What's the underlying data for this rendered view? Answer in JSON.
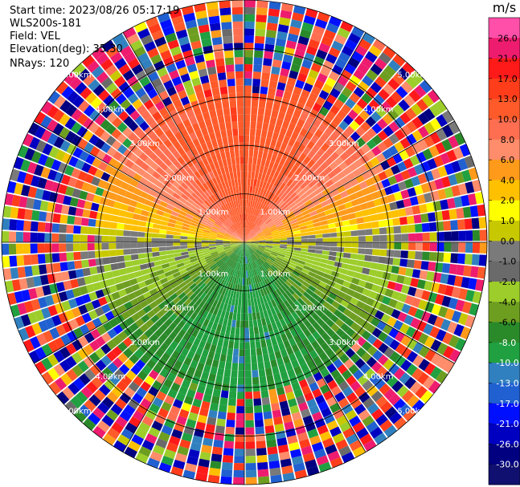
{
  "header": {
    "start_time": "Start time: 2023/08/26 05:17:19",
    "instrument": "WLS200s-181",
    "field": "Field: VEL",
    "elevation": "Elevation(deg): 35.30",
    "nrays": "NRays: 120"
  },
  "colorbar": {
    "unit": "m/s",
    "ticks": [
      "26.0",
      "21.0",
      "17.0",
      "13.0",
      "10.0",
      "8.0",
      "6.0",
      "4.0",
      "2.0",
      "1.0",
      "0.0",
      "-1.0",
      "-2.0",
      "-4.0",
      "-6.0",
      "-8.0",
      "-10.0",
      "-13.0",
      "-17.0",
      "-21.0",
      "-26.0",
      "-30.0"
    ],
    "colors": [
      "#ff4fa8",
      "#ee1c6e",
      "#ff1a1a",
      "#ff3d1a",
      "#ff5a2a",
      "#ff6e50",
      "#ff8c6a",
      "#ff9a1a",
      "#ffc000",
      "#ffff00",
      "#c8c800",
      "#7a7a7a",
      "#6a6a6a",
      "#9ccd2a",
      "#6e9e20",
      "#2a8a2a",
      "#20a040",
      "#3080c0",
      "#2060d0",
      "#0010ff",
      "#0000c0",
      "#000080",
      "#101070"
    ]
  },
  "chart_data": {
    "type": "heatmap",
    "subtype": "polar PPI radial velocity scan",
    "field": "VEL",
    "units": "m/s",
    "nrays": 120,
    "elevation_deg": 35.3,
    "range_rings_km": [
      1.0,
      2.0,
      3.0,
      4.0,
      5.0
    ],
    "range_labels": [
      "1.00km",
      "2.00km",
      "3.00km",
      "4.00km",
      "5.00km"
    ],
    "spokes_deg": [
      0,
      30,
      60,
      90,
      120,
      150,
      180,
      210,
      240,
      270,
      300,
      330
    ],
    "colorbar_range": [
      -30.0,
      26.0
    ],
    "pattern": {
      "north_sector_velocity": 12.0,
      "south_sector_velocity": -9.0,
      "valid_range_km": 3.2,
      "noise_beyond_km": 3.2
    }
  }
}
